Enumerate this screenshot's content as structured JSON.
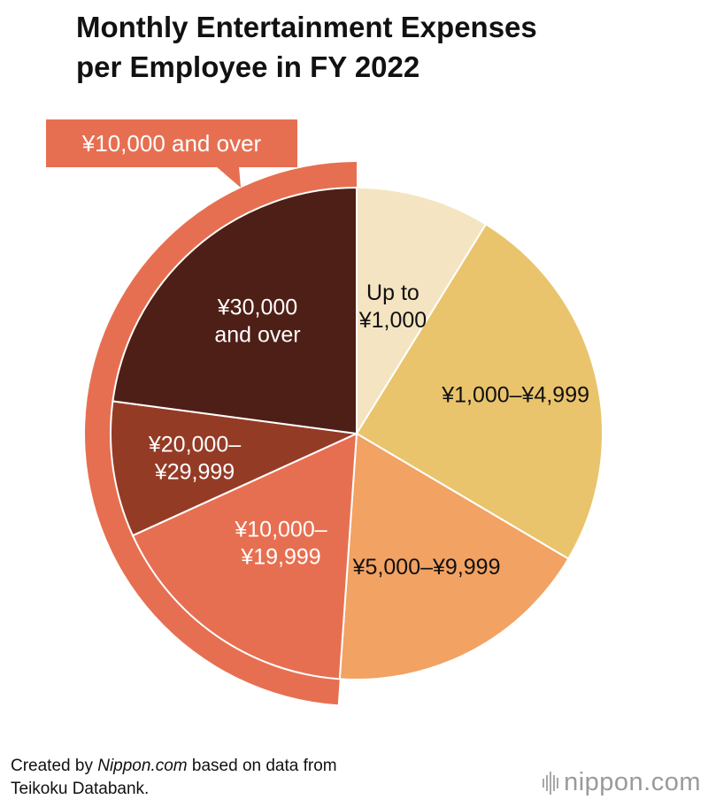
{
  "title_lines": [
    "Monthly Entertainment Expenses",
    "per Employee in FY 2022"
  ],
  "credit": {
    "prefix": "Created by ",
    "source_site": "Nippon.com",
    "suffix": " based on data from",
    "line2": "Teikoku Databank."
  },
  "logo": {
    "main": "nippon",
    "tld": ".com"
  },
  "colors": {
    "up_to_1000": "#f4e4c1",
    "1000_4999": "#e9c46c",
    "5000_9999": "#f2a262",
    "10000_19999": "#e76f51",
    "20000_29999": "#943b26",
    "30000_over": "#4e1f16",
    "group_ring": "#e76f51"
  },
  "chart_data": {
    "type": "pie",
    "slices": [
      {
        "label": [
          "Up to",
          "¥1,000"
        ],
        "value": 8.8,
        "color": "#f4e4c1",
        "text_color": "#111111"
      },
      {
        "label": [
          "¥1,000–¥4,999"
        ],
        "value": 24.7,
        "color": "#e9c46c",
        "text_color": "#111111"
      },
      {
        "label": [
          "¥5,000–¥9,999"
        ],
        "value": 17.6,
        "color": "#f2a262",
        "text_color": "#111111"
      },
      {
        "label": [
          "¥10,000–",
          "¥19,999"
        ],
        "value": 17.1,
        "color": "#e76f51",
        "text_color": "#ffffff"
      },
      {
        "label": [
          "¥20,000–",
          "¥29,999"
        ],
        "value": 8.9,
        "color": "#943b26",
        "text_color": "#ffffff"
      },
      {
        "label": [
          "¥30,000",
          "and over"
        ],
        "value": 22.9,
        "color": "#4e1f16",
        "text_color": "#ffffff"
      }
    ],
    "group": {
      "label": "¥10,000 and over",
      "slices": [
        "¥10,000–¥19,999",
        "¥20,000–¥29,999",
        "¥30,000 and over"
      ],
      "color": "#e76f51"
    },
    "start": "12 o'clock",
    "direction": "clockwise"
  }
}
